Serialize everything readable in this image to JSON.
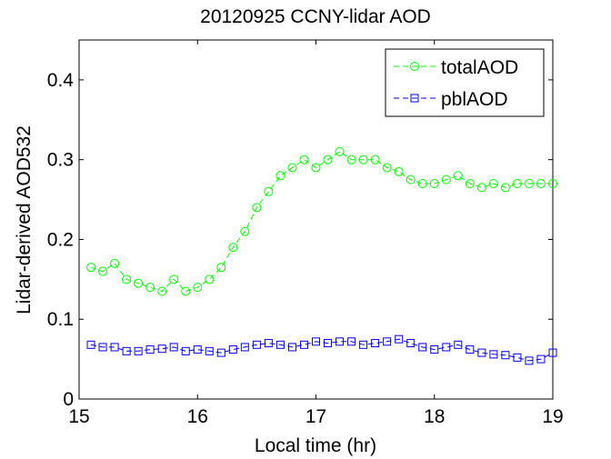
{
  "chart_data": {
    "type": "line",
    "title": "20120925 CCNY-lidar AOD",
    "xlabel": "Local time (hr)",
    "ylabel": "Lidar-derived AOD532",
    "xlim": [
      15,
      19
    ],
    "ylim": [
      0,
      0.45
    ],
    "xticks": [
      15,
      16,
      17,
      18,
      19
    ],
    "xtick_labels": [
      "15",
      "16",
      "17",
      "18",
      "19"
    ],
    "yticks": [
      0,
      0.1,
      0.2,
      0.3,
      0.4
    ],
    "ytick_labels": [
      "0",
      "0.1",
      "0.2",
      "0.3",
      "0.4"
    ],
    "grid": false,
    "legend_position": "top-right",
    "series": [
      {
        "name": "totalAOD",
        "color": "#00ff00",
        "line_style": "dashed",
        "marker": "circle",
        "x": [
          15.1,
          15.2,
          15.3,
          15.4,
          15.5,
          15.6,
          15.7,
          15.8,
          15.9,
          16.0,
          16.1,
          16.2,
          16.3,
          16.4,
          16.5,
          16.6,
          16.7,
          16.8,
          16.9,
          17.0,
          17.1,
          17.2,
          17.3,
          17.4,
          17.5,
          17.6,
          17.7,
          17.8,
          17.9,
          18.0,
          18.1,
          18.2,
          18.3,
          18.4,
          18.5,
          18.6,
          18.7,
          18.8,
          18.9,
          19.0
        ],
        "values": [
          0.165,
          0.16,
          0.17,
          0.15,
          0.145,
          0.14,
          0.135,
          0.15,
          0.135,
          0.14,
          0.15,
          0.165,
          0.19,
          0.21,
          0.24,
          0.26,
          0.28,
          0.29,
          0.3,
          0.29,
          0.3,
          0.31,
          0.3,
          0.3,
          0.3,
          0.29,
          0.285,
          0.275,
          0.27,
          0.27,
          0.275,
          0.28,
          0.27,
          0.265,
          0.27,
          0.265,
          0.27,
          0.27,
          0.27,
          0.27
        ]
      },
      {
        "name": "pblAOD",
        "color": "#0000ff",
        "line_style": "dashed",
        "marker": "square",
        "x": [
          15.1,
          15.2,
          15.3,
          15.4,
          15.5,
          15.6,
          15.7,
          15.8,
          15.9,
          16.0,
          16.1,
          16.2,
          16.3,
          16.4,
          16.5,
          16.6,
          16.7,
          16.8,
          16.9,
          17.0,
          17.1,
          17.2,
          17.3,
          17.4,
          17.5,
          17.6,
          17.7,
          17.8,
          17.9,
          18.0,
          18.1,
          18.2,
          18.3,
          18.4,
          18.5,
          18.6,
          18.7,
          18.8,
          18.9,
          19.0
        ],
        "values": [
          0.068,
          0.065,
          0.065,
          0.06,
          0.06,
          0.062,
          0.063,
          0.065,
          0.06,
          0.062,
          0.06,
          0.058,
          0.062,
          0.065,
          0.068,
          0.07,
          0.068,
          0.065,
          0.068,
          0.072,
          0.07,
          0.072,
          0.072,
          0.068,
          0.07,
          0.072,
          0.075,
          0.07,
          0.065,
          0.062,
          0.065,
          0.068,
          0.062,
          0.058,
          0.056,
          0.055,
          0.052,
          0.048,
          0.05,
          0.058
        ]
      }
    ]
  }
}
